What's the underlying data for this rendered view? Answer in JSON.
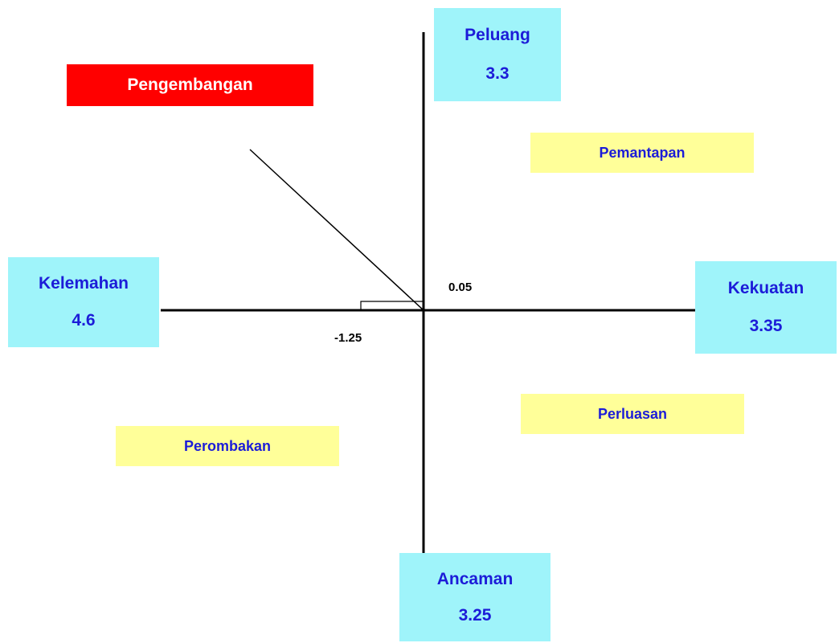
{
  "axes": {
    "top": {
      "label": "Peluang",
      "value": 3.3
    },
    "right": {
      "label": "Kekuatan",
      "value": 3.35
    },
    "left": {
      "label": "Kelemahan",
      "value": 4.6
    },
    "bottom": {
      "label": "Ancaman",
      "value": 3.25
    }
  },
  "quadrants": {
    "top_left": "Pengembangan",
    "top_right": "Pemantapan",
    "bottom_right": "Perluasan",
    "bottom_left": "Perombakan"
  },
  "point": {
    "y": 0.05,
    "x": -1.25
  }
}
